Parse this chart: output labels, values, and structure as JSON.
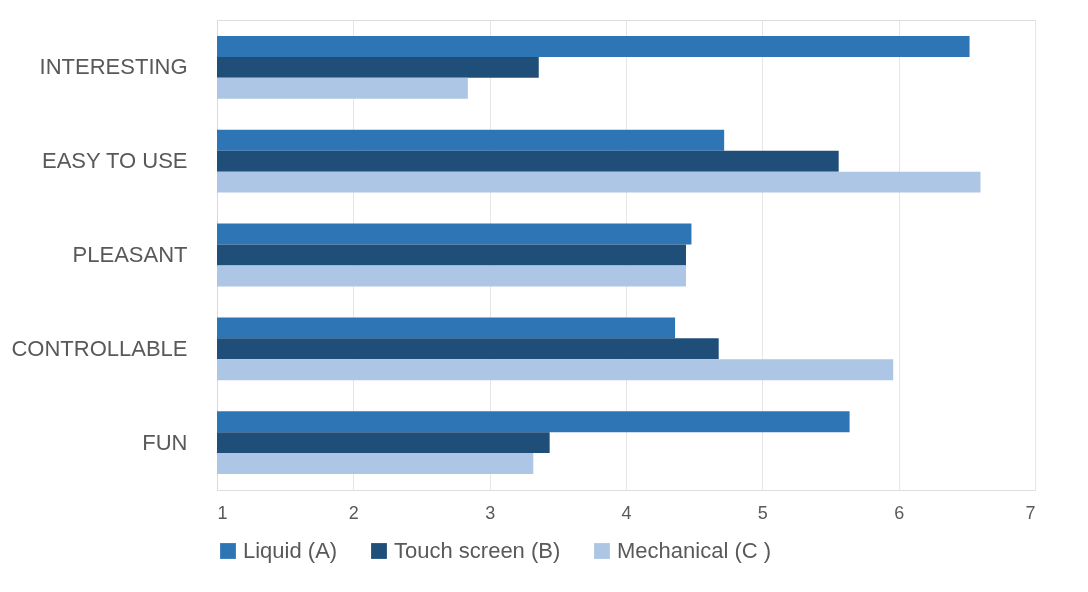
{
  "chart_data": {
    "type": "bar",
    "orientation": "horizontal",
    "categories": [
      "INTERESTING",
      "EASY TO USE",
      "PLEASANT",
      "CONTROLLABLE",
      "FUN"
    ],
    "series": [
      {
        "name": "Liquid (A)",
        "color": "#2e75b6",
        "values": [
          6.52,
          4.72,
          4.48,
          4.36,
          5.64
        ]
      },
      {
        "name": "Touch screen (B)",
        "color": "#1f4e79",
        "values": [
          3.36,
          5.56,
          4.44,
          4.68,
          3.44
        ]
      },
      {
        "name": "Mechanical (C )",
        "color": "#adc6e5",
        "values": [
          2.84,
          6.6,
          4.44,
          5.96,
          3.32
        ]
      }
    ],
    "xlim": [
      1,
      7
    ],
    "xticks": [
      1,
      2,
      3,
      4,
      5,
      6,
      7
    ],
    "grid": "x",
    "legend": "bottom"
  }
}
